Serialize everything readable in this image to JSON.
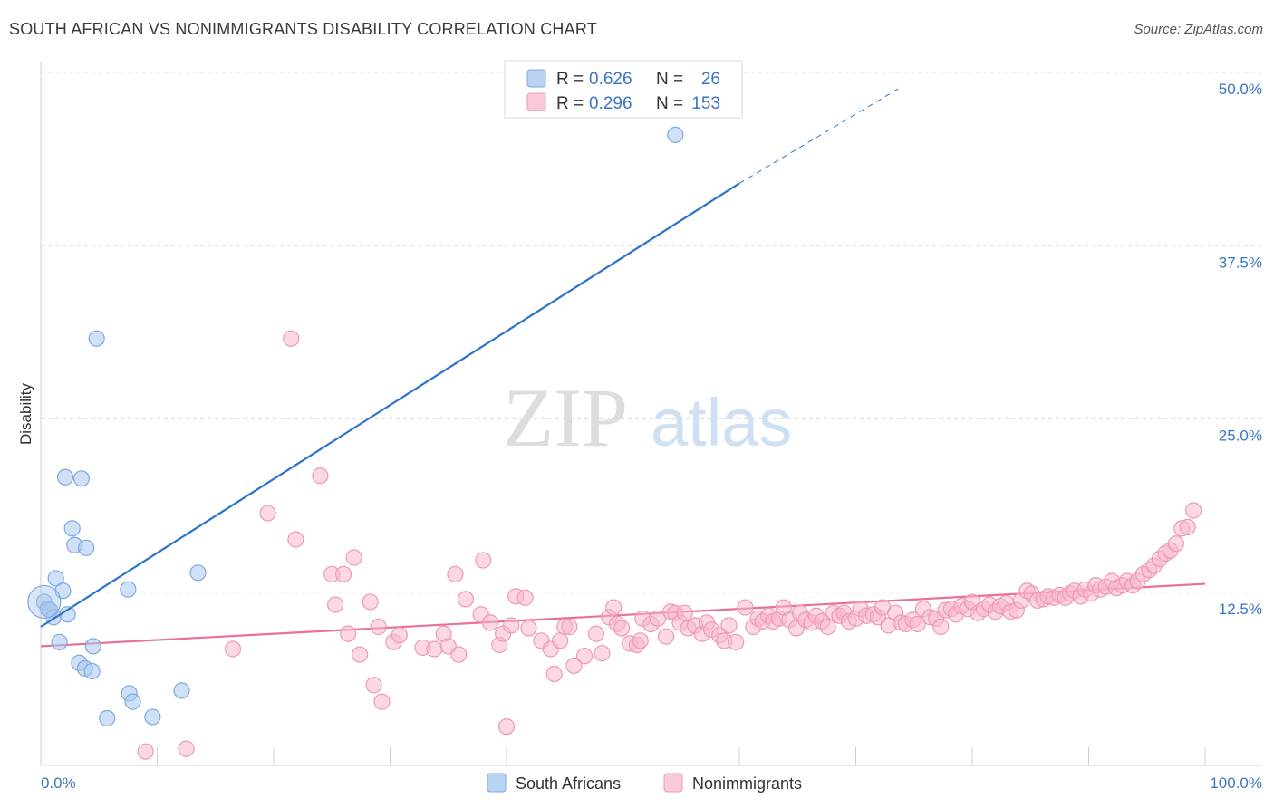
{
  "title": "SOUTH AFRICAN VS NONIMMIGRANTS DISABILITY CORRELATION CHART",
  "source": "Source: ZipAtlas.com",
  "watermark": {
    "zip": "ZIP",
    "atlas": "atlas"
  },
  "colors": {
    "blue_fill": "#a9c8f0",
    "blue_stroke": "#7ea9e0",
    "blue_line": "#2a72cc",
    "pink_fill": "#f7b8ca",
    "pink_stroke": "#ee9ab2",
    "pink_line": "#e8709a",
    "axis_label": "#3a76c4",
    "grid": "#dcdcdc"
  },
  "stats_legend": [
    {
      "r_label": "R = ",
      "r_value": "0.626",
      "n_label": "N = ",
      "n_value": "26",
      "series": "South Africans"
    },
    {
      "r_label": "R = ",
      "r_value": "0.296",
      "n_label": "N = ",
      "n_value": "153",
      "series": "Nonimmigrants"
    }
  ],
  "chart_data": {
    "type": "scatter",
    "title": "SOUTH AFRICAN VS NONIMMIGRANTS DISABILITY CORRELATION CHART",
    "xlabel": "",
    "ylabel": "Disability",
    "xlim": [
      0,
      100
    ],
    "ylim": [
      0,
      50
    ],
    "x_tick_labels": [
      "0.0%",
      "100.0%"
    ],
    "y_tick_labels": [
      "12.5%",
      "25.0%",
      "37.5%",
      "50.0%"
    ],
    "y_ticks": [
      12.5,
      25.0,
      37.5,
      50.0
    ],
    "grid": true,
    "legend_position": "bottom-center",
    "series": [
      {
        "name": "South Africans",
        "color": "#a9c8f0",
        "points": [
          [
            0.3,
            11.8
          ],
          [
            0.6,
            11.3
          ],
          [
            0.8,
            11.2
          ],
          [
            1.1,
            10.7
          ],
          [
            1.3,
            13.5
          ],
          [
            1.6,
            8.9
          ],
          [
            1.9,
            12.6
          ],
          [
            2.1,
            20.8
          ],
          [
            2.3,
            10.9
          ],
          [
            2.7,
            17.1
          ],
          [
            2.9,
            15.9
          ],
          [
            3.3,
            7.4
          ],
          [
            3.5,
            20.7
          ],
          [
            3.8,
            7.0
          ],
          [
            3.9,
            15.7
          ],
          [
            4.4,
            6.8
          ],
          [
            4.5,
            8.6
          ],
          [
            5.7,
            3.4
          ],
          [
            4.8,
            30.8
          ],
          [
            7.5,
            12.7
          ],
          [
            7.6,
            5.2
          ],
          [
            7.9,
            4.6
          ],
          [
            9.6,
            3.5
          ],
          [
            12.1,
            5.4
          ],
          [
            13.5,
            13.9
          ],
          [
            54.5,
            45.5
          ]
        ],
        "trend": {
          "x0": 0,
          "y0": 10.0,
          "x1": 60,
          "y1": 42.0,
          "dash_x1": 74,
          "dash_y1": 49.0
        }
      },
      {
        "name": "Nonimmigrants",
        "color": "#f7b8ca",
        "points": [
          [
            9.0,
            1.0
          ],
          [
            12.5,
            1.2
          ],
          [
            16.5,
            8.4
          ],
          [
            19.5,
            18.2
          ],
          [
            21.5,
            30.8
          ],
          [
            21.9,
            16.3
          ],
          [
            24.0,
            20.9
          ],
          [
            25.0,
            13.8
          ],
          [
            25.3,
            11.6
          ],
          [
            26.0,
            13.8
          ],
          [
            26.4,
            9.5
          ],
          [
            26.9,
            15.0
          ],
          [
            27.4,
            8.0
          ],
          [
            28.6,
            5.8
          ],
          [
            29.3,
            4.6
          ],
          [
            28.3,
            11.8
          ],
          [
            29.0,
            10.0
          ],
          [
            30.3,
            8.9
          ],
          [
            30.8,
            9.4
          ],
          [
            32.8,
            8.5
          ],
          [
            33.8,
            8.4
          ],
          [
            34.6,
            9.5
          ],
          [
            35.0,
            8.6
          ],
          [
            35.6,
            13.8
          ],
          [
            35.9,
            8.0
          ],
          [
            36.5,
            12.0
          ],
          [
            37.8,
            10.9
          ],
          [
            38.0,
            14.8
          ],
          [
            38.6,
            10.3
          ],
          [
            39.4,
            8.7
          ],
          [
            39.7,
            9.5
          ],
          [
            40.0,
            2.8
          ],
          [
            40.4,
            10.1
          ],
          [
            40.8,
            12.2
          ],
          [
            41.6,
            12.1
          ],
          [
            41.9,
            9.9
          ],
          [
            43.0,
            9.0
          ],
          [
            43.8,
            8.4
          ],
          [
            44.1,
            6.6
          ],
          [
            44.6,
            9.0
          ],
          [
            45.0,
            10.0
          ],
          [
            45.4,
            10.0
          ],
          [
            45.8,
            7.2
          ],
          [
            46.7,
            7.9
          ],
          [
            47.7,
            9.5
          ],
          [
            48.2,
            8.1
          ],
          [
            48.8,
            10.7
          ],
          [
            49.2,
            11.4
          ],
          [
            49.5,
            10.2
          ],
          [
            49.9,
            9.9
          ],
          [
            50.6,
            8.8
          ],
          [
            51.2,
            8.7
          ],
          [
            51.5,
            9.0
          ],
          [
            51.7,
            10.6
          ],
          [
            52.4,
            10.2
          ],
          [
            53.0,
            10.6
          ],
          [
            53.7,
            9.3
          ],
          [
            54.1,
            11.1
          ],
          [
            54.5,
            11.0
          ],
          [
            54.9,
            10.3
          ],
          [
            55.3,
            11.0
          ],
          [
            55.6,
            9.9
          ],
          [
            56.2,
            10.1
          ],
          [
            56.8,
            9.5
          ],
          [
            57.2,
            10.3
          ],
          [
            57.6,
            9.8
          ],
          [
            58.3,
            9.4
          ],
          [
            58.7,
            9.0
          ],
          [
            59.1,
            10.1
          ],
          [
            59.7,
            8.9
          ],
          [
            60.5,
            11.4
          ],
          [
            61.2,
            10.0
          ],
          [
            61.6,
            10.6
          ],
          [
            62.0,
            10.4
          ],
          [
            62.5,
            10.8
          ],
          [
            62.9,
            10.4
          ],
          [
            63.4,
            10.6
          ],
          [
            63.8,
            11.4
          ],
          [
            64.3,
            10.5
          ],
          [
            64.9,
            9.9
          ],
          [
            65.2,
            11.0
          ],
          [
            65.7,
            10.5
          ],
          [
            66.2,
            10.3
          ],
          [
            66.6,
            10.8
          ],
          [
            67.1,
            10.4
          ],
          [
            67.6,
            10.0
          ],
          [
            68.1,
            11.0
          ],
          [
            68.6,
            10.8
          ],
          [
            69.0,
            11.0
          ],
          [
            69.4,
            10.4
          ],
          [
            70.0,
            10.6
          ],
          [
            70.4,
            11.3
          ],
          [
            70.9,
            10.8
          ],
          [
            71.5,
            10.9
          ],
          [
            71.9,
            10.7
          ],
          [
            72.3,
            11.4
          ],
          [
            72.8,
            10.1
          ],
          [
            73.4,
            11.0
          ],
          [
            73.9,
            10.3
          ],
          [
            74.3,
            10.2
          ],
          [
            74.9,
            10.5
          ],
          [
            75.3,
            10.2
          ],
          [
            75.8,
            11.3
          ],
          [
            76.4,
            10.7
          ],
          [
            76.9,
            10.6
          ],
          [
            77.3,
            10.0
          ],
          [
            77.7,
            11.2
          ],
          [
            78.2,
            11.3
          ],
          [
            78.6,
            10.9
          ],
          [
            79.1,
            11.5
          ],
          [
            79.6,
            11.3
          ],
          [
            80.0,
            11.8
          ],
          [
            80.5,
            11.0
          ],
          [
            81.0,
            11.3
          ],
          [
            81.5,
            11.6
          ],
          [
            82.0,
            11.1
          ],
          [
            82.4,
            11.5
          ],
          [
            82.9,
            11.7
          ],
          [
            83.3,
            11.1
          ],
          [
            83.8,
            11.2
          ],
          [
            84.2,
            11.9
          ],
          [
            84.7,
            12.6
          ],
          [
            85.1,
            12.4
          ],
          [
            85.6,
            11.9
          ],
          [
            86.1,
            12.0
          ],
          [
            86.5,
            12.2
          ],
          [
            87.0,
            12.1
          ],
          [
            87.5,
            12.3
          ],
          [
            88.0,
            12.1
          ],
          [
            88.4,
            12.4
          ],
          [
            88.8,
            12.6
          ],
          [
            89.3,
            12.2
          ],
          [
            89.7,
            12.7
          ],
          [
            90.2,
            12.4
          ],
          [
            90.6,
            13.0
          ],
          [
            91.0,
            12.7
          ],
          [
            91.5,
            12.9
          ],
          [
            92.0,
            13.3
          ],
          [
            92.4,
            12.8
          ],
          [
            92.9,
            13.0
          ],
          [
            93.3,
            13.3
          ],
          [
            93.8,
            13.0
          ],
          [
            94.2,
            13.3
          ],
          [
            94.7,
            13.8
          ],
          [
            95.2,
            14.1
          ],
          [
            95.6,
            14.4
          ],
          [
            96.1,
            14.9
          ],
          [
            96.6,
            15.3
          ],
          [
            97.0,
            15.5
          ],
          [
            97.5,
            16.0
          ],
          [
            98.0,
            17.1
          ],
          [
            98.5,
            17.2
          ],
          [
            99.0,
            18.4
          ]
        ],
        "trend": {
          "x0": 0,
          "y0": 8.6,
          "x1": 100,
          "y1": 13.1
        }
      }
    ]
  }
}
